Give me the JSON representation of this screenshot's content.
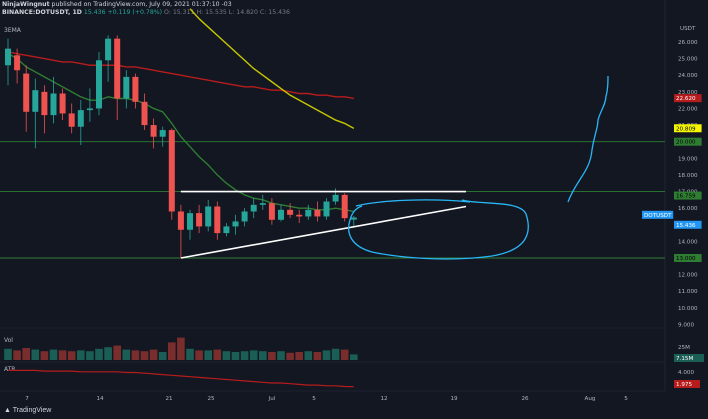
{
  "header": {
    "author": "NinjaWingnut",
    "published": "published on TradingView.com, July 09, 2021 01:37:10 -03",
    "symbol": "BINANCE:DOTUSDT, 1D",
    "change_value": "15.436  +0.119 (+0.78%)",
    "ohlc": "O: 15.311  H: 15.535  L: 14.820  C: 15.436"
  },
  "indicators": {
    "ema_label": "3EMA",
    "vol_label": "Vol",
    "atr_label": "ATR"
  },
  "price_axis": {
    "currency": "USDT",
    "ticks": [
      "26.000",
      "25.000",
      "24.000",
      "23.000",
      "22.000",
      "21.000",
      "20.000",
      "19.000",
      "18.000",
      "17.000",
      "16.000",
      "15.000",
      "14.000",
      "13.000",
      "12.000",
      "11.000",
      "10.000",
      "9.000"
    ]
  },
  "price_tags": [
    {
      "text": "22.620",
      "color": "#b71c1c"
    },
    {
      "text": "20.809",
      "color": "#f5f500"
    },
    {
      "text": "20.000",
      "color": "#2e7d32"
    },
    {
      "text": "16.759",
      "color": "#2e7d32"
    },
    {
      "text": "DOTUSDT",
      "color": "#2196f3"
    },
    {
      "text": "15.436",
      "color": "#2196f3"
    },
    {
      "text": "13.000",
      "color": "#2e7d32"
    }
  ],
  "vol_axis": {
    "tick": "25M",
    "tag": "7.15M"
  },
  "atr_axis": {
    "tick": "4.000",
    "tag": "1.975"
  },
  "time_axis": {
    "labels": [
      "7",
      "14",
      "21",
      "25",
      "Jul",
      "5",
      "12",
      "19",
      "26",
      "Aug",
      "5"
    ]
  },
  "footer": {
    "brand": "TradingView"
  },
  "colors": {
    "up": "#26a69a",
    "down": "#ef5350",
    "ema_fast": "#2e7d32",
    "ema_mid": "#c8c800",
    "ema_slow": "#b71c1c",
    "drawing": "#29b6f6",
    "trendline": "#ffffff",
    "hline": "#2e7d32"
  },
  "chart_data": {
    "type": "candlestick",
    "symbol": "DOTUSDT",
    "interval": "1D",
    "ylim": [
      9,
      26.6
    ],
    "horizontal_levels": [
      20,
      17,
      13
    ],
    "candles": [
      {
        "o": 24.6,
        "h": 26.2,
        "l": 23.4,
        "c": 25.6
      },
      {
        "o": 25.2,
        "h": 25.6,
        "l": 23.5,
        "c": 24.3
      },
      {
        "o": 24.1,
        "h": 24.6,
        "l": 20.6,
        "c": 21.8
      },
      {
        "o": 21.8,
        "h": 23.8,
        "l": 19.6,
        "c": 23.1
      },
      {
        "o": 23.0,
        "h": 23.4,
        "l": 20.5,
        "c": 21.6
      },
      {
        "o": 21.6,
        "h": 23.9,
        "l": 21.1,
        "c": 22.9
      },
      {
        "o": 22.9,
        "h": 23.2,
        "l": 21.3,
        "c": 21.7
      },
      {
        "o": 21.7,
        "h": 22.3,
        "l": 20.5,
        "c": 20.9
      },
      {
        "o": 20.9,
        "h": 22.5,
        "l": 19.8,
        "c": 21.9
      },
      {
        "o": 21.9,
        "h": 23.2,
        "l": 21.2,
        "c": 22.0
      },
      {
        "o": 22.0,
        "h": 25.4,
        "l": 21.6,
        "c": 24.9
      },
      {
        "o": 24.9,
        "h": 26.4,
        "l": 23.6,
        "c": 26.2
      },
      {
        "o": 26.2,
        "h": 26.4,
        "l": 21.3,
        "c": 22.6
      },
      {
        "o": 22.6,
        "h": 24.3,
        "l": 22.0,
        "c": 23.9
      },
      {
        "o": 23.9,
        "h": 24.1,
        "l": 22.0,
        "c": 22.4
      },
      {
        "o": 22.4,
        "h": 22.9,
        "l": 20.7,
        "c": 21.0
      },
      {
        "o": 21.0,
        "h": 21.4,
        "l": 19.6,
        "c": 20.3
      },
      {
        "o": 20.3,
        "h": 20.9,
        "l": 19.7,
        "c": 20.7
      },
      {
        "o": 20.7,
        "h": 20.8,
        "l": 15.3,
        "c": 15.8
      },
      {
        "o": 15.8,
        "h": 16.2,
        "l": 13.0,
        "c": 14.7
      },
      {
        "o": 14.7,
        "h": 15.9,
        "l": 14.1,
        "c": 15.7
      },
      {
        "o": 15.7,
        "h": 16.2,
        "l": 14.5,
        "c": 14.9
      },
      {
        "o": 14.9,
        "h": 16.5,
        "l": 14.6,
        "c": 16.1
      },
      {
        "o": 16.1,
        "h": 16.4,
        "l": 14.1,
        "c": 14.5
      },
      {
        "o": 14.5,
        "h": 15.1,
        "l": 14.3,
        "c": 14.9
      },
      {
        "o": 14.9,
        "h": 15.6,
        "l": 14.4,
        "c": 15.2
      },
      {
        "o": 15.2,
        "h": 16.0,
        "l": 14.9,
        "c": 15.8
      },
      {
        "o": 15.8,
        "h": 16.6,
        "l": 15.4,
        "c": 16.2
      },
      {
        "o": 16.2,
        "h": 16.8,
        "l": 15.9,
        "c": 16.3
      },
      {
        "o": 16.3,
        "h": 16.6,
        "l": 15.0,
        "c": 15.3
      },
      {
        "o": 15.3,
        "h": 16.2,
        "l": 15.2,
        "c": 15.9
      },
      {
        "o": 15.9,
        "h": 16.3,
        "l": 15.4,
        "c": 15.6
      },
      {
        "o": 15.6,
        "h": 15.9,
        "l": 15.1,
        "c": 15.5
      },
      {
        "o": 15.5,
        "h": 16.2,
        "l": 15.3,
        "c": 15.9
      },
      {
        "o": 15.9,
        "h": 16.4,
        "l": 15.2,
        "c": 15.5
      },
      {
        "o": 15.5,
        "h": 16.6,
        "l": 15.3,
        "c": 16.4
      },
      {
        "o": 16.4,
        "h": 17.2,
        "l": 16.2,
        "c": 16.8
      },
      {
        "o": 16.8,
        "h": 16.9,
        "l": 15.2,
        "c": 15.4
      },
      {
        "o": 15.311,
        "h": 15.535,
        "l": 14.82,
        "c": 15.436
      }
    ],
    "ema_fast": [
      25.3,
      25.0,
      24.5,
      24.2,
      23.9,
      23.6,
      23.3,
      23.0,
      22.7,
      22.5,
      22.5,
      22.7,
      22.6,
      22.6,
      22.5,
      22.3,
      22.0,
      21.8,
      21.1,
      20.3,
      19.7,
      19.1,
      18.6,
      18.0,
      17.5,
      17.1,
      16.8,
      16.6,
      16.5,
      16.3,
      16.2,
      16.1,
      16.0,
      16.0,
      15.9,
      15.9,
      16.0,
      15.9,
      15.8
    ],
    "ema_mid": [
      null,
      null,
      null,
      null,
      null,
      null,
      null,
      null,
      null,
      null,
      null,
      null,
      null,
      null,
      null,
      null,
      null,
      null,
      null,
      null,
      28.0,
      27.4,
      26.9,
      26.4,
      25.9,
      25.4,
      24.9,
      24.4,
      24.0,
      23.6,
      23.2,
      22.8,
      22.5,
      22.2,
      21.9,
      21.6,
      21.3,
      21.1,
      20.8
    ],
    "ema_slow": [
      25.4,
      25.3,
      25.2,
      25.1,
      25.0,
      24.9,
      24.8,
      24.8,
      24.7,
      24.6,
      24.6,
      24.6,
      24.6,
      24.5,
      24.5,
      24.4,
      24.3,
      24.2,
      24.1,
      24.0,
      23.9,
      23.8,
      23.7,
      23.6,
      23.5,
      23.4,
      23.3,
      23.3,
      23.2,
      23.1,
      23.1,
      23.0,
      22.9,
      22.9,
      22.8,
      22.8,
      22.7,
      22.7,
      22.6
    ],
    "volume_up_flags": [
      1,
      0,
      0,
      1,
      0,
      1,
      0,
      0,
      1,
      1,
      1,
      1,
      0,
      1,
      0,
      0,
      0,
      1,
      0,
      0,
      1,
      0,
      1,
      0,
      1,
      1,
      1,
      1,
      1,
      0,
      1,
      0,
      0,
      1,
      0,
      1,
      1,
      0,
      1
    ],
    "volume": [
      14,
      12,
      15,
      13,
      11,
      13,
      12,
      11,
      12,
      11,
      14,
      16,
      18,
      13,
      12,
      11,
      13,
      10,
      22,
      28,
      14,
      12,
      12,
      13,
      11,
      10,
      11,
      12,
      11,
      10,
      11,
      9,
      10,
      11,
      10,
      12,
      14,
      13,
      7
    ],
    "atr": [
      4.3,
      4.3,
      4.3,
      4.3,
      4.2,
      4.2,
      4.2,
      4.2,
      4.1,
      4.1,
      4.1,
      4.1,
      4.1,
      4.0,
      4.0,
      3.9,
      3.8,
      3.7,
      3.6,
      3.5,
      3.4,
      3.3,
      3.2,
      3.1,
      3.0,
      2.9,
      2.8,
      2.7,
      2.6,
      2.5,
      2.5,
      2.4,
      2.3,
      2.2,
      2.2,
      2.1,
      2.1,
      2.0,
      1.975
    ]
  }
}
